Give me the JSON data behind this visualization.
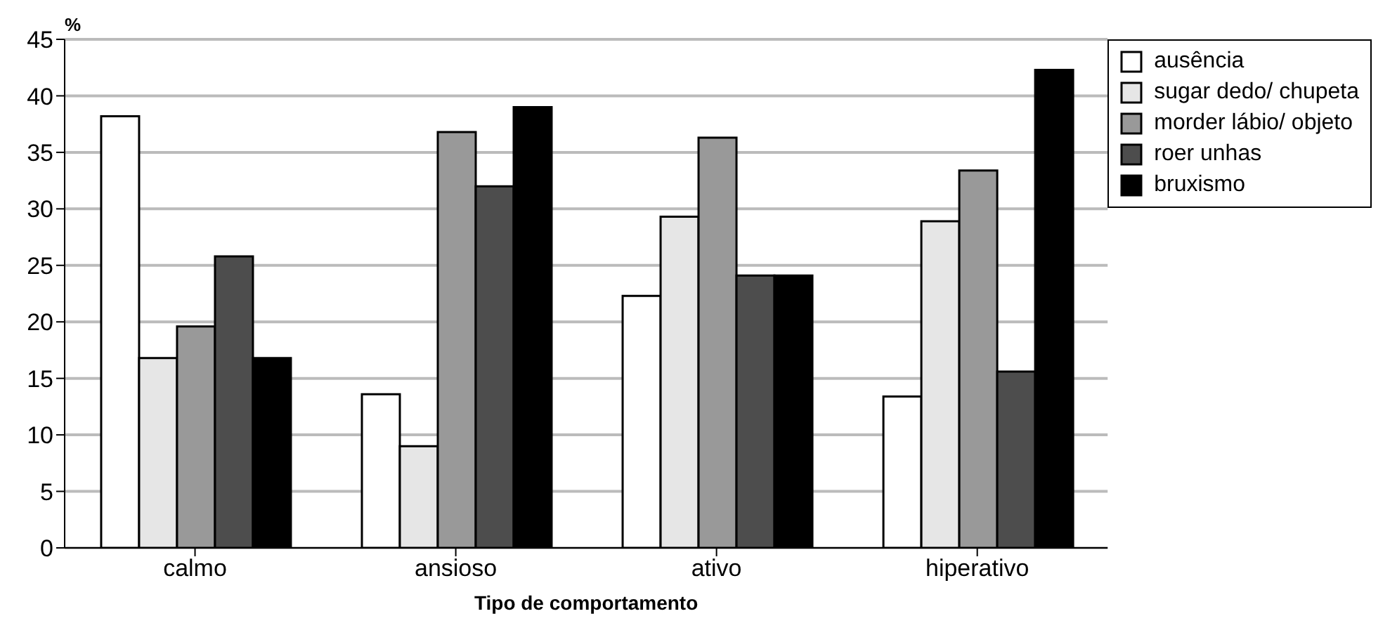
{
  "chart_data": {
    "type": "bar",
    "ylabel": "%",
    "xlabel": "Tipo de comportamento",
    "categories": [
      "calmo",
      "ansioso",
      "ativo",
      "hiperativo"
    ],
    "series": [
      {
        "name": "ausência",
        "color": "#ffffff",
        "values": [
          38.2,
          13.6,
          22.3,
          13.4
        ]
      },
      {
        "name": "sugar dedo/ chupeta",
        "color": "#e6e6e6",
        "values": [
          16.8,
          9,
          29.3,
          28.9
        ]
      },
      {
        "name": "morder lábio/ objeto",
        "color": "#999999",
        "values": [
          19.6,
          36.8,
          36.3,
          33.4
        ]
      },
      {
        "name": "roer unhas",
        "color": "#4d4d4d",
        "values": [
          25.8,
          32,
          24.1,
          15.6
        ]
      },
      {
        "name": "bruxismo",
        "color": "#000000",
        "values": [
          16.8,
          39,
          24.1,
          42.3
        ]
      }
    ],
    "ylim": [
      0,
      45
    ],
    "yticks": [
      0,
      5,
      10,
      15,
      20,
      25,
      30,
      35,
      40,
      45
    ],
    "grid": "y",
    "legend": "top right"
  }
}
